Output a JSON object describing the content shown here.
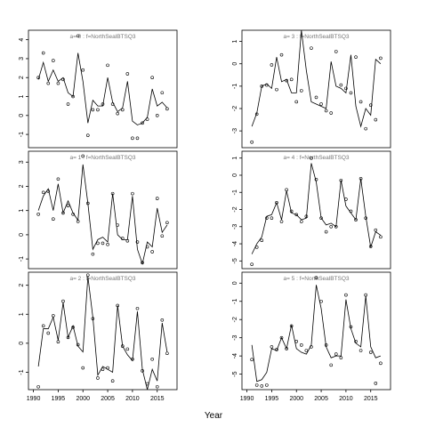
{
  "chart_data": {
    "type": "line",
    "xlabel": "Year",
    "ylabel": "",
    "x_ticks": [
      1990,
      1995,
      2000,
      2005,
      2010,
      2015
    ],
    "panels": [
      {
        "title": "a= 0 : f=NorthSealBTSQ3",
        "xlim": [
          1989,
          2019
        ],
        "ylim": [
          -1.7,
          4.5
        ],
        "y_ticks": [
          -1,
          0,
          1,
          2,
          3,
          4
        ],
        "years": [
          1991,
          1992,
          1993,
          1994,
          1995,
          1996,
          1997,
          1998,
          1999,
          2000,
          2001,
          2002,
          2003,
          2004,
          2005,
          2006,
          2007,
          2008,
          2009,
          2010,
          2011,
          2012,
          2013,
          2014,
          2015,
          2016,
          2017
        ],
        "fit": [
          1.9,
          2.8,
          1.8,
          2.4,
          1.8,
          2.0,
          1.2,
          1.0,
          3.3,
          1.8,
          -0.4,
          0.8,
          0.5,
          0.5,
          2.0,
          0.7,
          0.2,
          0.4,
          1.8,
          -0.3,
          -0.5,
          -0.4,
          -0.1,
          1.4,
          0.5,
          0.7,
          0.4
        ],
        "obs": [
          2.0,
          3.3,
          1.7,
          2.9,
          1.7,
          1.9,
          0.6,
          1.0,
          4.2,
          2.4,
          -1.05,
          0.3,
          0.3,
          0.6,
          2.65,
          0.6,
          0.1,
          0.3,
          2.2,
          -1.2,
          -1.2,
          -0.4,
          -0.2,
          2.0,
          0.0,
          1.2,
          0.35
        ]
      },
      {
        "title": "a= 3 : f=NorthSealBTSQ3",
        "xlim": [
          1989,
          2019
        ],
        "ylim": [
          -3.75,
          1.5
        ],
        "y_ticks": [
          -3,
          -2,
          -1,
          0,
          1
        ],
        "years": [
          1991,
          1992,
          1993,
          1994,
          1995,
          1996,
          1997,
          1998,
          1999,
          2000,
          2001,
          2002,
          2003,
          2004,
          2005,
          2006,
          2007,
          2008,
          2009,
          2010,
          2011,
          2012,
          2013,
          2014,
          2015,
          2016,
          2017
        ],
        "fit": [
          -2.8,
          -2.2,
          -1.0,
          -0.9,
          -1.1,
          0.3,
          -0.8,
          -0.7,
          -1.3,
          -1.3,
          1.5,
          -0.3,
          -1.7,
          -1.8,
          -1.9,
          -2.0,
          0.1,
          -1.0,
          -1.1,
          -1.3,
          0.4,
          -1.9,
          -2.8,
          -2.0,
          -2.3,
          0.2,
          0.0
        ],
        "obs": [
          -3.5,
          -2.25,
          -1.0,
          -0.95,
          -0.05,
          -1.15,
          0.4,
          -0.75,
          -0.7,
          -1.7,
          -1.2,
          1.65,
          0.7,
          -1.5,
          -1.8,
          -2.1,
          -2.2,
          0.55,
          -0.95,
          -1.1,
          -1.3,
          0.3,
          -1.7,
          -2.9,
          -1.85,
          -2.5,
          0.25
        ]
      },
      {
        "title": "a= 1 : f=NorthSealBTSQ3",
        "xlim": [
          1989,
          2019
        ],
        "ylim": [
          -1.4,
          3.45
        ],
        "y_ticks": [
          -1,
          0,
          1,
          2,
          3
        ],
        "years": [
          1991,
          1992,
          1993,
          1994,
          1995,
          1996,
          1997,
          1998,
          1999,
          2000,
          2001,
          2002,
          2003,
          2004,
          2005,
          2006,
          2007,
          2008,
          2009,
          2010,
          2011,
          2012,
          2013,
          2014,
          2015,
          2016,
          2017
        ],
        "fit": [
          1.0,
          1.6,
          1.9,
          1.0,
          2.1,
          0.9,
          1.4,
          0.9,
          0.6,
          2.9,
          1.3,
          -0.6,
          -0.2,
          -0.1,
          -0.3,
          1.7,
          0.0,
          -0.2,
          -0.2,
          1.6,
          -0.6,
          -1.2,
          -0.3,
          -0.5,
          1.1,
          0.1,
          0.4
        ],
        "obs": [
          0.85,
          1.75,
          1.8,
          0.65,
          2.3,
          0.9,
          1.2,
          0.85,
          0.55,
          3.25,
          1.3,
          -0.8,
          -0.35,
          -0.35,
          -0.4,
          1.7,
          0.4,
          -0.15,
          -0.25,
          1.7,
          -0.3,
          -1.15,
          -0.5,
          -0.7,
          1.5,
          -0.05,
          0.5
        ]
      },
      {
        "title": "a= 4 : f=NorthSealBTSQ3",
        "xlim": [
          1989,
          2019
        ],
        "ylim": [
          -5.45,
          1.4
        ],
        "y_ticks": [
          -5,
          -4,
          -3,
          -2,
          -1,
          0,
          1
        ],
        "years": [
          1991,
          1992,
          1993,
          1994,
          1995,
          1996,
          1997,
          1998,
          1999,
          2000,
          2001,
          2002,
          2003,
          2004,
          2005,
          2006,
          2007,
          2008,
          2009,
          2010,
          2011,
          2012,
          2013,
          2014,
          2015,
          2016,
          2017
        ],
        "fit": [
          -4.6,
          -4.0,
          -3.6,
          -2.4,
          -2.3,
          -1.6,
          -2.6,
          -0.9,
          -2.2,
          -2.3,
          -2.6,
          -2.5,
          0.7,
          -0.4,
          -2.5,
          -2.9,
          -2.8,
          -3.0,
          -0.3,
          -1.8,
          -2.2,
          -2.6,
          -0.2,
          -2.4,
          -4.2,
          -3.3,
          -3.5
        ],
        "obs": [
          -5.2,
          -4.2,
          -3.8,
          -2.5,
          -2.5,
          -1.6,
          -2.7,
          -0.85,
          -2.1,
          -2.3,
          -2.7,
          -2.4,
          1.0,
          -0.25,
          -2.5,
          -3.3,
          -3.0,
          -3.0,
          -0.3,
          -1.4,
          -2.1,
          -2.6,
          -0.2,
          -2.5,
          -4.15,
          -3.2,
          -3.6
        ]
      },
      {
        "title": "a= 2 : f=NorthSealBTSQ3",
        "xlim": [
          1989,
          2019
        ],
        "ylim": [
          -1.6,
          2.45
        ],
        "y_ticks": [
          -1,
          0,
          1,
          2
        ],
        "years": [
          1991,
          1992,
          1993,
          1994,
          1995,
          1996,
          1997,
          1998,
          1999,
          2000,
          2001,
          2002,
          2003,
          2004,
          2005,
          2006,
          2007,
          2008,
          2009,
          2010,
          2011,
          2012,
          2013,
          2014,
          2015,
          2016,
          2017
        ],
        "fit": [
          -0.8,
          0.5,
          0.5,
          0.9,
          0.1,
          1.4,
          0.2,
          0.6,
          -0.1,
          -0.3,
          2.3,
          0.9,
          -1.1,
          -0.8,
          -0.9,
          -1.0,
          1.3,
          -0.1,
          -0.4,
          -0.6,
          1.1,
          -0.9,
          -1.6,
          -0.9,
          -1.3,
          0.7,
          -0.3
        ],
        "obs": [
          -1.5,
          0.6,
          0.35,
          0.95,
          0.05,
          1.45,
          0.2,
          0.55,
          -0.05,
          -0.85,
          2.35,
          0.85,
          -1.2,
          -0.9,
          -0.85,
          -1.3,
          1.3,
          -0.1,
          -0.2,
          -0.55,
          1.2,
          -0.95,
          -1.4,
          -0.55,
          -1.5,
          0.8,
          -0.35
        ]
      },
      {
        "title": "a= 5 : f=NorthSealBTSQ3",
        "xlim": [
          1989,
          2019
        ],
        "ylim": [
          -5.85,
          0.6
        ],
        "y_ticks": [
          -5,
          -4,
          -3,
          -2,
          -1,
          0
        ],
        "years": [
          1991,
          1992,
          1993,
          1994,
          1995,
          1996,
          1997,
          1998,
          1999,
          2000,
          2001,
          2002,
          2003,
          2004,
          2005,
          2006,
          2007,
          2008,
          2009,
          2010,
          2011,
          2012,
          2013,
          2014,
          2015,
          2016,
          2017
        ],
        "fit": [
          -3.4,
          -5.4,
          -5.3,
          -4.9,
          -3.6,
          -3.7,
          -3.0,
          -3.6,
          -2.3,
          -3.6,
          -3.8,
          -3.9,
          -3.4,
          -0.1,
          -1.4,
          -3.5,
          -4.1,
          -4.0,
          -4.0,
          -0.9,
          -2.5,
          -3.3,
          -3.5,
          -0.7,
          -3.5,
          -4.1,
          -4.0
        ],
        "obs": [
          -4.2,
          -5.6,
          -5.65,
          -5.6,
          -3.5,
          -3.65,
          -3.0,
          -3.6,
          -2.35,
          -3.2,
          -3.4,
          -3.7,
          -3.5,
          0.3,
          -1.0,
          -3.4,
          -4.5,
          -3.9,
          -4.1,
          -0.65,
          -2.4,
          -3.2,
          -3.7,
          -0.65,
          -3.8,
          -5.5,
          -4.4
        ]
      }
    ]
  }
}
